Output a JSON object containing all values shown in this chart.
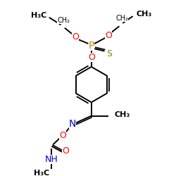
{
  "bg_color": "#ffffff",
  "atom_colors": {
    "O": "#ff0000",
    "N": "#0000cc",
    "P": "#cc8800",
    "S": "#808000"
  },
  "bond_color": "#000000",
  "bond_width": 1.4,
  "font_size": 8,
  "figsize": [
    2.5,
    2.5
  ],
  "dpi": 100,
  "xlim": [
    0,
    10
  ],
  "ylim": [
    0,
    10
  ]
}
